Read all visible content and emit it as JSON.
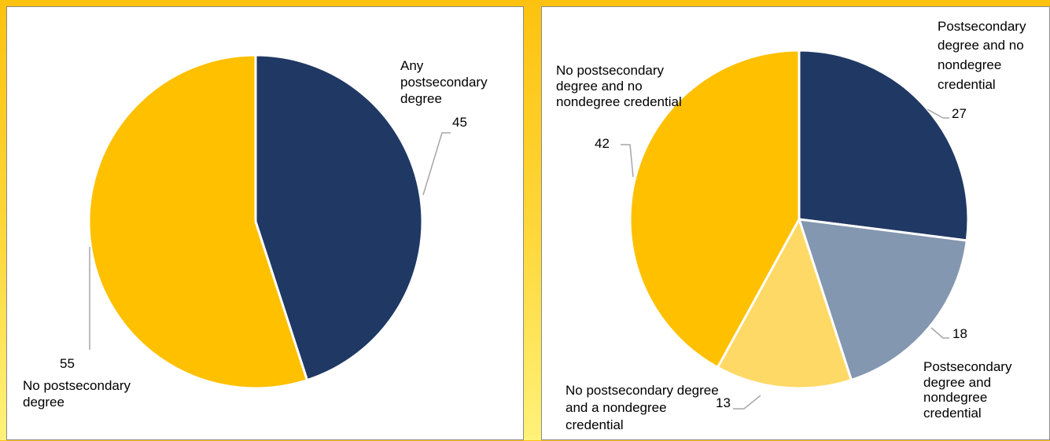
{
  "colors": {
    "navy": "#203864",
    "gold": "#ffc000",
    "slate": "#8497b0",
    "light_gold": "#ffd966",
    "leader": "#a6a6a6"
  },
  "chart_data": [
    {
      "type": "pie",
      "title": "",
      "start_angle_deg": 0,
      "direction": "clockwise",
      "slices": [
        {
          "label": "Any postsecondary degree",
          "value": 45,
          "color": "#203864"
        },
        {
          "label": "No postsecondary degree",
          "value": 55,
          "color": "#ffc000"
        }
      ]
    },
    {
      "type": "pie",
      "title": "",
      "start_angle_deg": 0,
      "direction": "clockwise",
      "slices": [
        {
          "label": "Postsecondary degree and no nondegree credential",
          "value": 27,
          "color": "#203864"
        },
        {
          "label": "Postsecondary degree and nondegree credential",
          "value": 18,
          "color": "#8497b0"
        },
        {
          "label": "No postsecondary degree and a nondegree credential",
          "value": 13,
          "color": "#ffd966"
        },
        {
          "label": "No postsecondary degree and no nondegree credential",
          "value": 42,
          "color": "#ffc000"
        }
      ]
    }
  ]
}
